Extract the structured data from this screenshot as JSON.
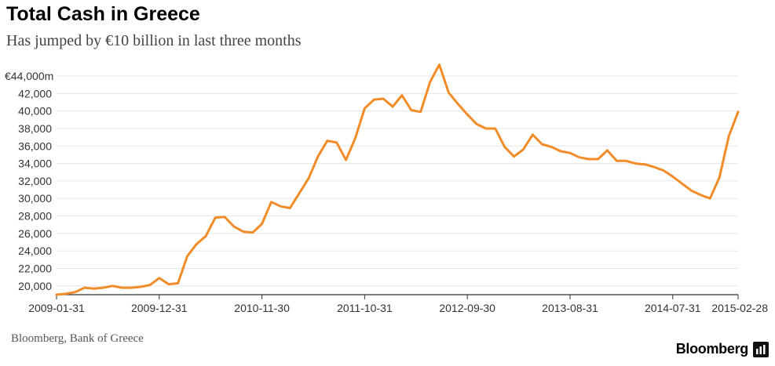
{
  "header": {
    "title": "Total Cash in Greece",
    "subtitle": "Has jumped by €10 billion in last three months"
  },
  "footer": {
    "source": "Bloomberg, Bank of Greece",
    "brand": "Bloomberg"
  },
  "colors": {
    "line": "#f28c28",
    "grid": "#e6e6e6",
    "axis": "#333333",
    "text": "#333333"
  },
  "chart_data": {
    "type": "line",
    "title": "Total Cash in Greece",
    "subtitle": "Has jumped by €10 billion in last three months",
    "xlabel": "",
    "ylabel": "",
    "ylim": [
      19000,
      44000
    ],
    "grid": true,
    "yticks": [
      20000,
      22000,
      24000,
      26000,
      28000,
      30000,
      32000,
      34000,
      36000,
      38000,
      40000,
      42000,
      44000
    ],
    "ytick_labels": [
      "20,000",
      "22,000",
      "24,000",
      "26,000",
      "28,000",
      "30,000",
      "32,000",
      "34,000",
      "36,000",
      "38,000",
      "40,000",
      "42,000",
      "€44,000m"
    ],
    "xticks": [
      {
        "index": 0,
        "label": "2009-01-31"
      },
      {
        "index": 11,
        "label": "2009-12-31"
      },
      {
        "index": 22,
        "label": "2010-11-30"
      },
      {
        "index": 33,
        "label": "2011-10-31"
      },
      {
        "index": 44,
        "label": "2012-09-30"
      },
      {
        "index": 55,
        "label": "2013-08-31"
      },
      {
        "index": 66,
        "label": "2014-07-31"
      },
      {
        "index": 73,
        "label": "2015-02-28"
      }
    ],
    "series": [
      {
        "name": "Total cash",
        "values": [
          19000,
          19100,
          19300,
          19800,
          19700,
          19800,
          20000,
          19800,
          19800,
          19900,
          20100,
          20900,
          20200,
          20300,
          23400,
          24800,
          25700,
          27800,
          27900,
          26800,
          26200,
          26100,
          27100,
          29600,
          29100,
          28900,
          30600,
          32300,
          34800,
          36600,
          36400,
          34400,
          36900,
          40300,
          41300,
          41400,
          40500,
          41800,
          40100,
          39900,
          43300,
          45300,
          42100,
          40800,
          39600,
          38500,
          38000,
          38000,
          35900,
          34800,
          35600,
          37300,
          36200,
          35900,
          35400,
          35200,
          34700,
          34500,
          34500,
          35500,
          34300,
          34300,
          34000,
          33900,
          33600,
          33200,
          32500,
          31700,
          30900,
          30400,
          30000,
          32400,
          37100,
          39900
        ]
      }
    ]
  }
}
